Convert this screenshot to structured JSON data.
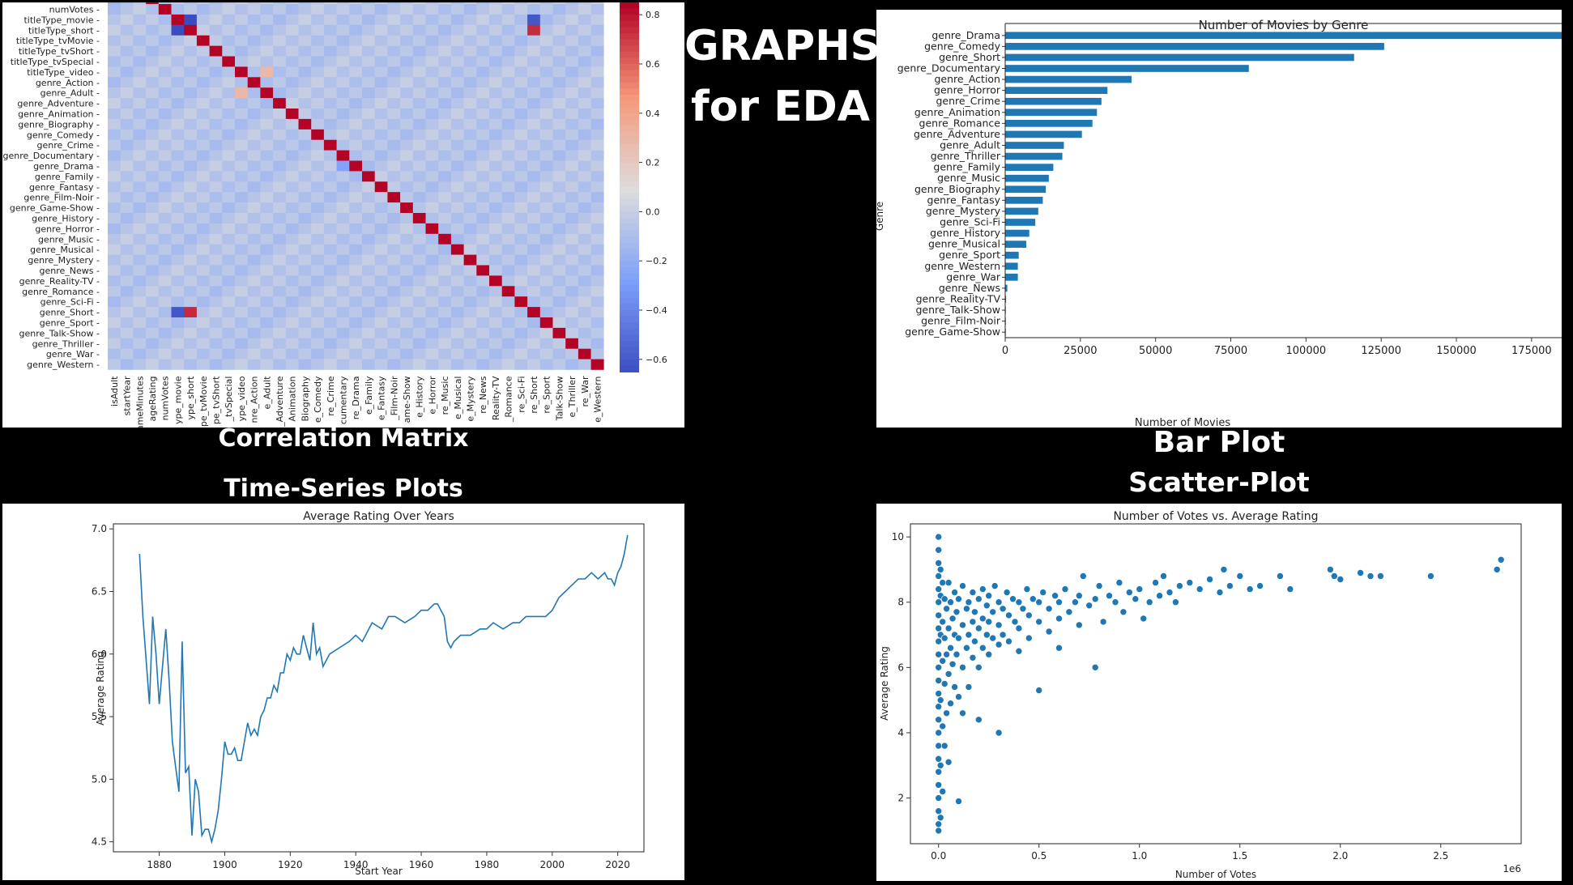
{
  "headline": {
    "line1": "GRAPHS",
    "line2": "for EDA"
  },
  "captions": {
    "heatmap": "Correlation Matrix",
    "bar": "Bar Plot",
    "line": "Time-Series Plots",
    "scatter": "Scatter-Plot"
  },
  "colors": {
    "bar": "#1f77b4",
    "line": "#1f77b4",
    "scatter": "#1f77b4",
    "diag": "#b40426",
    "cool": "#3b4cc0",
    "warm": "#f4987a"
  },
  "chart_data": [
    {
      "type": "heatmap",
      "row_labels": [
        "numVotes",
        "titleType_movie",
        "titleType_short",
        "titleType_tvMovie",
        "titleType_tvShort",
        "titleType_tvSpecial",
        "titleType_video",
        "genre_Action",
        "genre_Adult",
        "genre_Adventure",
        "genre_Animation",
        "genre_Biography",
        "genre_Comedy",
        "genre_Crime",
        "genre_Documentary",
        "genre_Drama",
        "genre_Family",
        "genre_Fantasy",
        "genre_Film-Noir",
        "genre_Game-Show",
        "genre_History",
        "genre_Horror",
        "genre_Music",
        "genre_Musical",
        "genre_Mystery",
        "genre_News",
        "genre_Reality-TV",
        "genre_Romance",
        "genre_Sci-Fi",
        "genre_Short",
        "genre_Sport",
        "genre_Talk-Show",
        "genre_Thriller",
        "genre_War",
        "genre_Western"
      ],
      "col_labels": [
        "isAdult",
        "startYear",
        "timeMinutes",
        "averageRating",
        "numVotes",
        "titleType_movie",
        "titleType_short",
        "titleType_tvMovie",
        "titleType_tvShort",
        "titleType_tvSpecial",
        "titleType_video",
        "genre_Action",
        "genre_Adult",
        "genre_Adventure",
        "genre_Animation",
        "genre_Biography",
        "genre_Comedy",
        "genre_Crime",
        "genre_Documentary",
        "genre_Drama",
        "genre_Family",
        "genre_Fantasy",
        "genre_Film-Noir",
        "genre_Game-Show",
        "genre_History",
        "genre_Horror",
        "genre_Music",
        "genre_Musical",
        "genre_Mystery",
        "genre_News",
        "genre_Reality-TV",
        "genre_Romance",
        "genre_Sci-Fi",
        "genre_Short",
        "genre_Sport",
        "genre_Talk-Show",
        "genre_Thriller",
        "genre_War",
        "genre_Western"
      ],
      "col_labels_visible": [
        "isAdult",
        "startYear",
        "ameMinutes",
        "ageRating",
        "numVotes",
        "ype_movie",
        "ype_short",
        "pe_tvMovie",
        "pe_tvShort",
        "_tvSpecial",
        "ype_video",
        "nre_Action",
        "e_Adult",
        "_Adventure",
        "Animation",
        "Biography",
        "e_Comedy",
        "re_Crime",
        "cumentary",
        "re_Drama",
        "e_Family",
        "e_Fantasy",
        "_Film-Noir",
        "ame-Show",
        "e_History",
        "e_Horror",
        "re_Music",
        "e_Musical",
        "e_Mystery",
        "re_News",
        "Reality-TV",
        "_Romance",
        "re_Sci-Fi",
        "re_Short",
        "re_Sport",
        "Talk-Show",
        "e_Thriller",
        "re_War",
        "e_Western"
      ],
      "colorbar_ticks": [
        "0.8",
        "0.6",
        "0.4",
        "0.2",
        "0.0",
        "−0.2",
        "−0.4",
        "−0.6"
      ],
      "colorbar_range": [
        -0.65,
        0.85
      ],
      "notable_cells": [
        {
          "row": "titleType_movie",
          "col": "titleType_short",
          "value": -0.65
        },
        {
          "row": "titleType_short",
          "col": "titleType_movie",
          "value": -0.65
        },
        {
          "row": "titleType_movie",
          "col": "genre_Short",
          "value": -0.6
        },
        {
          "row": "titleType_short",
          "col": "genre_Short",
          "value": 0.75
        },
        {
          "row": "genre_Short",
          "col": "titleType_movie",
          "value": -0.6
        },
        {
          "row": "genre_Short",
          "col": "titleType_short",
          "value": 0.75
        },
        {
          "row": "titleType_video",
          "col": "genre_Adult",
          "value": 0.3
        },
        {
          "row": "genre_Adult",
          "col": "titleType_video",
          "value": 0.3
        },
        {
          "row": "genre_Drama",
          "col": "genre_Documentary",
          "value": -0.25
        }
      ]
    },
    {
      "type": "bar",
      "orientation": "horizontal",
      "title": "Number of Movies by Genre",
      "xlabel": "Number of Movies",
      "ylabel": "Genre",
      "xlim": [
        0,
        185000
      ],
      "xticks": [
        "0",
        "25000",
        "50000",
        "75000",
        "100000",
        "125000",
        "150000",
        "175000"
      ],
      "categories": [
        "genre_Drama",
        "genre_Comedy",
        "genre_Short",
        "genre_Documentary",
        "genre_Action",
        "genre_Horror",
        "genre_Crime",
        "genre_Animation",
        "genre_Romance",
        "genre_Adventure",
        "genre_Adult",
        "genre_Thriller",
        "genre_Family",
        "genre_Music",
        "genre_Biography",
        "genre_Fantasy",
        "genre_Mystery",
        "genre_Sci-Fi",
        "genre_History",
        "genre_Musical",
        "genre_Sport",
        "genre_Western",
        "genre_War",
        "genre_News",
        "genre_Reality-TV",
        "genre_Talk-Show",
        "genre_Film-Noir",
        "genre_Game-Show"
      ],
      "values": [
        185000,
        126000,
        116000,
        81000,
        42000,
        34000,
        32000,
        30500,
        29000,
        25500,
        19500,
        19000,
        16000,
        14500,
        13500,
        12500,
        11000,
        10000,
        8000,
        7000,
        4500,
        4200,
        4200,
        700,
        300,
        200,
        150,
        80
      ]
    },
    {
      "type": "line",
      "title": "Average Rating Over Years",
      "xlabel": "Start Year",
      "ylabel": "Average Rating",
      "xlim": [
        1866,
        2028
      ],
      "ylim": [
        4.42,
        7.04
      ],
      "xticks": [
        "1880",
        "1900",
        "1920",
        "1940",
        "1960",
        "1980",
        "2000",
        "2020"
      ],
      "yticks": [
        "4.5",
        "5.0",
        "5.5",
        "6.0",
        "6.5",
        "7.0"
      ],
      "x": [
        1874,
        1875,
        1877,
        1878,
        1879,
        1880,
        1881,
        1882,
        1883,
        1884,
        1885,
        1886,
        1887,
        1888,
        1889,
        1890,
        1891,
        1892,
        1893,
        1894,
        1895,
        1896,
        1897,
        1898,
        1899,
        1900,
        1901,
        1902,
        1903,
        1904,
        1905,
        1906,
        1907,
        1908,
        1909,
        1910,
        1911,
        1912,
        1913,
        1914,
        1915,
        1916,
        1917,
        1918,
        1919,
        1920,
        1921,
        1922,
        1923,
        1924,
        1925,
        1926,
        1927,
        1928,
        1929,
        1930,
        1932,
        1935,
        1938,
        1940,
        1942,
        1945,
        1948,
        1950,
        1952,
        1955,
        1958,
        1960,
        1962,
        1964,
        1965,
        1966,
        1967,
        1968,
        1969,
        1970,
        1972,
        1975,
        1978,
        1980,
        1982,
        1985,
        1988,
        1990,
        1992,
        1995,
        1998,
        2000,
        2002,
        2004,
        2006,
        2008,
        2010,
        2012,
        2014,
        2016,
        2017,
        2018,
        2019,
        2020,
        2021,
        2022,
        2023
      ],
      "values": [
        6.8,
        6.3,
        5.6,
        6.3,
        6.0,
        5.6,
        5.9,
        6.2,
        5.8,
        5.3,
        5.1,
        4.9,
        6.1,
        5.05,
        5.1,
        4.55,
        5.0,
        4.9,
        4.55,
        4.6,
        4.6,
        4.5,
        4.6,
        4.75,
        5.0,
        5.3,
        5.2,
        5.2,
        5.25,
        5.15,
        5.15,
        5.3,
        5.45,
        5.35,
        5.4,
        5.35,
        5.5,
        5.55,
        5.65,
        5.65,
        5.75,
        5.7,
        5.85,
        5.85,
        6.0,
        5.95,
        6.05,
        6.0,
        6.0,
        6.15,
        6.05,
        5.95,
        6.25,
        6.0,
        6.05,
        5.9,
        6.0,
        6.05,
        6.1,
        6.15,
        6.1,
        6.25,
        6.2,
        6.3,
        6.3,
        6.25,
        6.3,
        6.35,
        6.35,
        6.4,
        6.4,
        6.35,
        6.3,
        6.1,
        6.05,
        6.1,
        6.15,
        6.15,
        6.2,
        6.2,
        6.25,
        6.2,
        6.25,
        6.25,
        6.3,
        6.3,
        6.3,
        6.35,
        6.45,
        6.5,
        6.55,
        6.6,
        6.6,
        6.65,
        6.6,
        6.65,
        6.6,
        6.6,
        6.55,
        6.65,
        6.7,
        6.8,
        6.95
      ]
    },
    {
      "type": "scatter",
      "title": "Number of Votes vs. Average Rating",
      "xlabel": "Number of Votes",
      "ylabel": "Average Rating",
      "x_multiplier": "1e6",
      "xlim": [
        -0.14,
        2.9
      ],
      "ylim": [
        0.6,
        10.4
      ],
      "xticks": [
        "0.0",
        "0.5",
        "1.0",
        "1.5",
        "2.0",
        "2.5"
      ],
      "yticks": [
        "2",
        "4",
        "6",
        "8",
        "10"
      ],
      "points": [
        [
          0.0,
          10.0
        ],
        [
          0.0,
          9.6
        ],
        [
          0.0,
          9.2
        ],
        [
          0.0,
          8.8
        ],
        [
          0.0,
          8.4
        ],
        [
          0.0,
          8.0
        ],
        [
          0.0,
          7.6
        ],
        [
          0.0,
          7.2
        ],
        [
          0.0,
          6.8
        ],
        [
          0.0,
          6.4
        ],
        [
          0.0,
          6.0
        ],
        [
          0.0,
          5.6
        ],
        [
          0.0,
          5.2
        ],
        [
          0.0,
          4.8
        ],
        [
          0.0,
          4.4
        ],
        [
          0.0,
          4.0
        ],
        [
          0.0,
          3.6
        ],
        [
          0.0,
          3.2
        ],
        [
          0.0,
          2.8
        ],
        [
          0.0,
          2.4
        ],
        [
          0.0,
          2.0
        ],
        [
          0.0,
          1.6
        ],
        [
          0.0,
          1.2
        ],
        [
          0.0,
          1.0
        ],
        [
          0.01,
          9.0
        ],
        [
          0.01,
          8.2
        ],
        [
          0.01,
          7.0
        ],
        [
          0.01,
          5.0
        ],
        [
          0.01,
          3.0
        ],
        [
          0.01,
          1.4
        ],
        [
          0.02,
          8.6
        ],
        [
          0.02,
          7.4
        ],
        [
          0.02,
          6.2
        ],
        [
          0.02,
          4.2
        ],
        [
          0.02,
          2.2
        ],
        [
          0.03,
          8.1
        ],
        [
          0.03,
          6.9
        ],
        [
          0.03,
          5.5
        ],
        [
          0.03,
          3.6
        ],
        [
          0.04,
          7.8
        ],
        [
          0.04,
          6.4
        ],
        [
          0.04,
          4.6
        ],
        [
          0.05,
          8.6
        ],
        [
          0.05,
          7.2
        ],
        [
          0.05,
          5.8
        ],
        [
          0.05,
          3.1
        ],
        [
          0.06,
          8.0
        ],
        [
          0.06,
          6.6
        ],
        [
          0.06,
          4.9
        ],
        [
          0.07,
          7.5
        ],
        [
          0.07,
          6.1
        ],
        [
          0.08,
          8.3
        ],
        [
          0.08,
          7.0
        ],
        [
          0.08,
          5.4
        ],
        [
          0.09,
          7.7
        ],
        [
          0.09,
          6.4
        ],
        [
          0.1,
          8.1
        ],
        [
          0.1,
          6.9
        ],
        [
          0.1,
          5.1
        ],
        [
          0.1,
          1.9
        ],
        [
          0.12,
          8.5
        ],
        [
          0.12,
          7.3
        ],
        [
          0.12,
          6.0
        ],
        [
          0.12,
          4.6
        ],
        [
          0.14,
          7.8
        ],
        [
          0.14,
          6.6
        ],
        [
          0.15,
          8.0
        ],
        [
          0.15,
          7.0
        ],
        [
          0.15,
          5.4
        ],
        [
          0.17,
          8.3
        ],
        [
          0.17,
          7.4
        ],
        [
          0.17,
          6.3
        ],
        [
          0.18,
          7.7
        ],
        [
          0.18,
          6.8
        ],
        [
          0.2,
          8.1
        ],
        [
          0.2,
          7.2
        ],
        [
          0.2,
          6.0
        ],
        [
          0.2,
          4.4
        ],
        [
          0.22,
          8.4
        ],
        [
          0.22,
          7.5
        ],
        [
          0.22,
          6.6
        ],
        [
          0.24,
          7.9
        ],
        [
          0.24,
          7.0
        ],
        [
          0.25,
          8.2
        ],
        [
          0.25,
          7.4
        ],
        [
          0.25,
          6.4
        ],
        [
          0.27,
          7.7
        ],
        [
          0.27,
          6.9
        ],
        [
          0.28,
          8.5
        ],
        [
          0.3,
          8.0
        ],
        [
          0.3,
          7.3
        ],
        [
          0.3,
          6.7
        ],
        [
          0.3,
          4.0
        ],
        [
          0.32,
          7.8
        ],
        [
          0.32,
          7.0
        ],
        [
          0.34,
          8.3
        ],
        [
          0.35,
          7.6
        ],
        [
          0.35,
          6.8
        ],
        [
          0.37,
          8.1
        ],
        [
          0.38,
          7.4
        ],
        [
          0.4,
          8.0
        ],
        [
          0.4,
          7.2
        ],
        [
          0.4,
          6.5
        ],
        [
          0.42,
          7.8
        ],
        [
          0.44,
          8.4
        ],
        [
          0.45,
          7.6
        ],
        [
          0.45,
          6.9
        ],
        [
          0.47,
          8.1
        ],
        [
          0.5,
          8.0
        ],
        [
          0.5,
          7.4
        ],
        [
          0.5,
          5.3
        ],
        [
          0.52,
          8.3
        ],
        [
          0.55,
          7.8
        ],
        [
          0.55,
          7.1
        ],
        [
          0.58,
          8.2
        ],
        [
          0.6,
          8.0
        ],
        [
          0.6,
          7.5
        ],
        [
          0.6,
          6.6
        ],
        [
          0.63,
          8.4
        ],
        [
          0.65,
          7.7
        ],
        [
          0.68,
          8.0
        ],
        [
          0.7,
          8.2
        ],
        [
          0.7,
          7.3
        ],
        [
          0.72,
          8.8
        ],
        [
          0.75,
          7.9
        ],
        [
          0.78,
          8.1
        ],
        [
          0.78,
          6.0
        ],
        [
          0.8,
          8.5
        ],
        [
          0.82,
          7.4
        ],
        [
          0.85,
          8.2
        ],
        [
          0.88,
          8.0
        ],
        [
          0.9,
          8.6
        ],
        [
          0.92,
          7.7
        ],
        [
          0.95,
          8.3
        ],
        [
          0.98,
          8.1
        ],
        [
          1.0,
          8.4
        ],
        [
          1.02,
          7.5
        ],
        [
          1.05,
          8.0
        ],
        [
          1.08,
          8.6
        ],
        [
          1.1,
          8.2
        ],
        [
          1.12,
          8.8
        ],
        [
          1.15,
          8.3
        ],
        [
          1.18,
          8.0
        ],
        [
          1.2,
          8.5
        ],
        [
          1.25,
          8.6
        ],
        [
          1.3,
          8.4
        ],
        [
          1.35,
          8.7
        ],
        [
          1.4,
          8.3
        ],
        [
          1.42,
          9.0
        ],
        [
          1.45,
          8.5
        ],
        [
          1.5,
          8.8
        ],
        [
          1.55,
          8.4
        ],
        [
          1.6,
          8.5
        ],
        [
          1.7,
          8.8
        ],
        [
          1.75,
          8.4
        ],
        [
          1.95,
          9.0
        ],
        [
          1.97,
          8.8
        ],
        [
          2.0,
          8.7
        ],
        [
          2.1,
          8.9
        ],
        [
          2.15,
          8.8
        ],
        [
          2.2,
          8.8
        ],
        [
          2.45,
          8.8
        ],
        [
          2.78,
          9.0
        ],
        [
          2.8,
          9.3
        ]
      ]
    }
  ]
}
